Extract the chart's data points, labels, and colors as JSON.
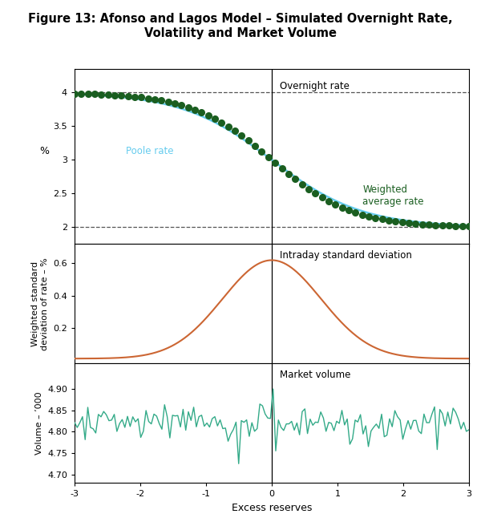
{
  "title": "Figure 13: Afonso and Lagos Model – Simulated Overnight Rate,\nVolatility and Market Volume",
  "title_fontsize": 10.5,
  "xlabel": "Excess reserves",
  "xlabel_fontsize": 9,
  "panel1_ylabel": "%",
  "panel1_ylabel_fontsize": 9,
  "panel2_ylabel": "Weighted standard\ndeviation of rate – %",
  "panel2_ylabel_fontsize": 8,
  "panel3_ylabel": "Volume – ’000",
  "panel3_ylabel_fontsize": 8,
  "panel1_label_overnight": "Overnight rate",
  "panel1_label_poole": "Poole rate",
  "panel1_label_weighted": "Weighted\naverage rate",
  "panel2_label": "Intraday standard deviation",
  "panel3_label": "Market volume",
  "x_min": -3,
  "x_max": 3,
  "panel1_ylim": [
    1.75,
    4.35
  ],
  "panel1_yticks": [
    2.0,
    2.5,
    3.0,
    3.5,
    4.0
  ],
  "panel2_ylim": [
    -0.02,
    0.72
  ],
  "panel2_yticks": [
    0.2,
    0.4,
    0.6
  ],
  "panel3_ylim": [
    4.68,
    4.96
  ],
  "panel3_yticks": [
    4.7,
    4.75,
    4.8,
    4.85,
    4.9
  ],
  "dashed_line_color": "#555555",
  "poole_color": "#66ccee",
  "weighted_dot_color": "#1a5e20",
  "volatility_color": "#cc6633",
  "volume_color": "#33aa88",
  "background_color": "#ffffff",
  "panel_border_color": "#000000",
  "seed": 42
}
